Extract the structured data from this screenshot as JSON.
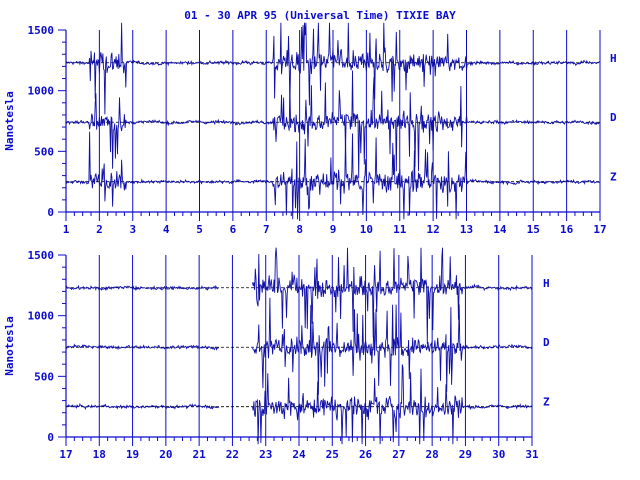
{
  "chart_data": {
    "type": "line",
    "title": "01 - 30 APR 95 (Universal Time) TIXIE BAY",
    "ylabel": "Nanotesla",
    "colors": {
      "trace": "#1010a8",
      "axis": "#0b0bd0",
      "baseline": "#000000"
    },
    "grid": "vertical day lines",
    "panels": [
      {
        "x_ticks": [
          "1",
          "2",
          "3",
          "4",
          "5",
          "6",
          "7",
          "8",
          "9",
          "10",
          "11",
          "12",
          "13",
          "14",
          "15",
          "16",
          "17"
        ],
        "xlim": [
          1,
          17
        ],
        "y_ticks": [
          "0",
          "500",
          "1000",
          "1500"
        ],
        "ylim": [
          0,
          1500
        ],
        "series": [
          {
            "name": "H",
            "baseline": 1230
          },
          {
            "name": "D",
            "baseline": 740
          },
          {
            "name": "Z",
            "baseline": 250
          }
        ],
        "gaps": [],
        "disturbed_intervals": [
          [
            1.7,
            2.8
          ],
          [
            7.2,
            13.0
          ]
        ]
      },
      {
        "x_ticks": [
          "17",
          "18",
          "19",
          "20",
          "21",
          "22",
          "23",
          "24",
          "25",
          "26",
          "27",
          "28",
          "29",
          "30",
          "31"
        ],
        "xlim": [
          17,
          31
        ],
        "y_ticks": [
          "0",
          "500",
          "1000",
          "1500"
        ],
        "ylim": [
          0,
          1500
        ],
        "series": [
          {
            "name": "H",
            "baseline": 1230
          },
          {
            "name": "D",
            "baseline": 740
          },
          {
            "name": "Z",
            "baseline": 250
          }
        ],
        "gaps": [
          [
            21.6,
            22.6
          ]
        ],
        "disturbed_intervals": [
          [
            22.6,
            28.9
          ]
        ]
      }
    ]
  }
}
